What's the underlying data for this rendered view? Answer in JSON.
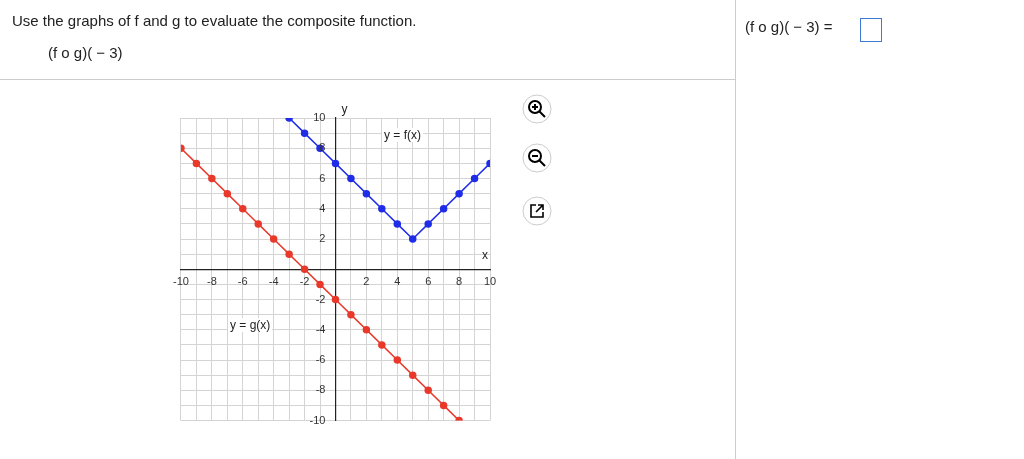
{
  "chart_data": {
    "type": "line",
    "title": "Use the graphs of f and g to evaluate the composite function.",
    "subtitle": "(f o g)( − 3)",
    "xlabel": "x",
    "ylabel": "y",
    "annotations": [
      "(f o g)( − 3) =",
      "y = f(x)",
      "y = g(x)"
    ],
    "series": [
      {
        "color": "#1f2de8",
        "x": [
          -3,
          -2,
          -1,
          0,
          1,
          2,
          3,
          4,
          5,
          6,
          7,
          8,
          9,
          10
        ],
        "values": [
          10,
          9,
          8,
          7,
          6,
          5,
          4,
          3,
          2,
          3,
          4,
          5,
          6,
          7
        ]
      },
      {
        "color": "#e8392b",
        "x": [
          -10,
          -9,
          -8,
          -7,
          -6,
          -5,
          -4,
          -3,
          -2,
          -1,
          0,
          1,
          2,
          3,
          4,
          5,
          6,
          7,
          8
        ],
        "values": [
          8,
          7,
          6,
          5,
          4,
          3,
          2,
          1,
          0,
          -1,
          -2,
          -3,
          -4,
          -5,
          -6,
          -7,
          -8,
          -9,
          -10
        ]
      }
    ],
    "xlim": [
      -10,
      10
    ],
    "ylim": [
      -10,
      10
    ],
    "xticks": [
      -10,
      {
        "value": -9,
        "label": null
      },
      -8,
      {
        "value": -7,
        "label": null
      },
      -6,
      {
        "value": -5,
        "label": null
      },
      -4,
      {
        "value": -3,
        "label": null
      },
      -2,
      {
        "value": -1,
        "label": null
      },
      {
        "value": 0,
        "label": null
      },
      {
        "value": 1,
        "label": null
      },
      2,
      {
        "value": 3,
        "label": null
      },
      4,
      {
        "value": 5,
        "label": null
      },
      6,
      {
        "value": 7,
        "label": null
      },
      8,
      {
        "value": 9,
        "label": null
      },
      10
    ],
    "yticks": [
      -10,
      {
        "value": -9,
        "label": null
      },
      -8,
      {
        "value": -7,
        "label": null
      },
      -6,
      {
        "value": -5,
        "label": null
      },
      -4,
      {
        "value": -3,
        "label": null
      },
      -2,
      {
        "value": -1,
        "label": null
      },
      {
        "value": 0,
        "label": null
      },
      {
        "value": 1,
        "label": null
      },
      2,
      {
        "value": 3,
        "label": null
      },
      4,
      {
        "value": 5,
        "label": null
      },
      6,
      {
        "value": 7,
        "label": null
      },
      8,
      {
        "value": 9,
        "label": null
      },
      10
    ],
    "grid": true,
    "legend": false,
    "marker": "circle",
    "line_style": "solid"
  }
}
